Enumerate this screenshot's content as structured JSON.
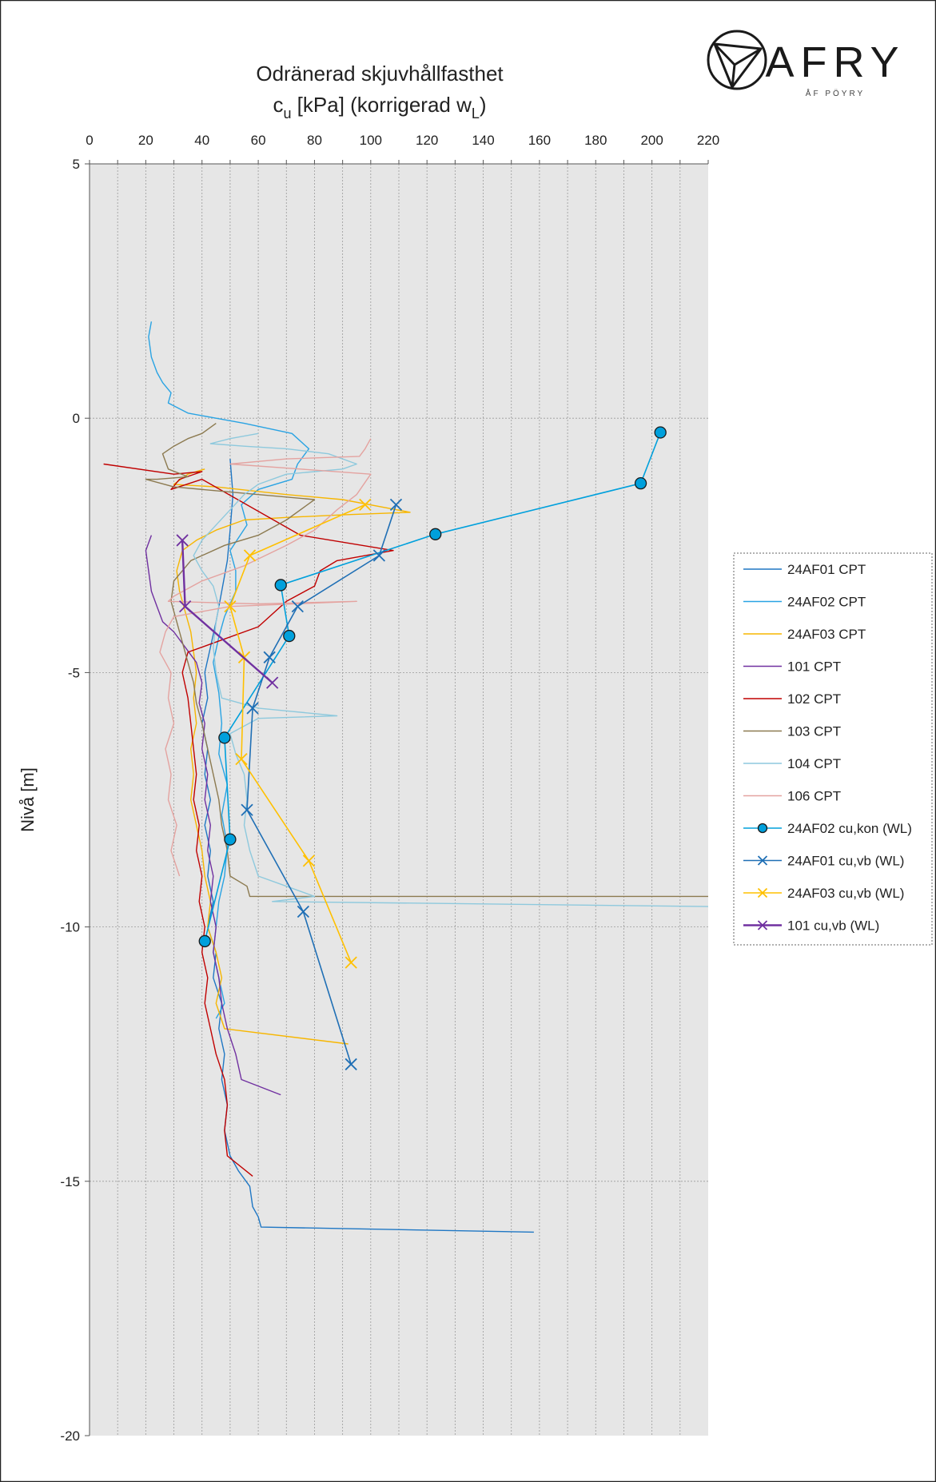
{
  "brand": {
    "name": "AFRY",
    "sub": "ÅF PÖYRY"
  },
  "chart_data": {
    "type": "line",
    "title_line1": "Odränerad skjuvhållfasthet",
    "title_line2_base": "c",
    "title_line2_sub": "u",
    "title_line2_mid": " [kPa] (korrigerad w",
    "title_line2_sub2": "L",
    "title_line2_end": ")",
    "xlabel": "",
    "ylabel": "Nivå [m]",
    "xlim": [
      0,
      220
    ],
    "ylim": [
      -20,
      5
    ],
    "x_ticks": [
      0,
      20,
      40,
      60,
      80,
      100,
      120,
      140,
      160,
      180,
      200,
      220
    ],
    "x_tick_labels": [
      "0",
      "20",
      "40",
      "60",
      "80",
      "100",
      "120",
      "140",
      "160",
      "180",
      "200",
      "220"
    ],
    "y_ticks": [
      5,
      0,
      -5,
      -10,
      -15,
      -20
    ],
    "y_tick_labels": [
      "5",
      "0",
      "-5",
      "-10",
      "-15",
      "-20"
    ],
    "grid": "vertical every 10 kPa, horizontal dotted at labeled levels",
    "legend_position": "right",
    "series": [
      {
        "name": "24AF01 CPT",
        "color": "#1f77c4",
        "marker": "none",
        "width": 1.4,
        "points": [
          [
            50,
            -0.8
          ],
          [
            51,
            -1.5
          ],
          [
            50,
            -2.2
          ],
          [
            49,
            -2.8
          ],
          [
            47,
            -3.4
          ],
          [
            45,
            -4.0
          ],
          [
            43,
            -4.5
          ],
          [
            41,
            -5.0
          ],
          [
            42,
            -5.5
          ],
          [
            40,
            -6.0
          ],
          [
            42,
            -6.5
          ],
          [
            41,
            -7.0
          ],
          [
            43,
            -7.5
          ],
          [
            41,
            -8.0
          ],
          [
            43,
            -8.5
          ],
          [
            42,
            -9.0
          ],
          [
            44,
            -9.5
          ],
          [
            42,
            -10.0
          ],
          [
            45,
            -10.5
          ],
          [
            44,
            -11.0
          ],
          [
            47,
            -11.5
          ],
          [
            46,
            -12.0
          ],
          [
            48,
            -12.5
          ],
          [
            47,
            -13.0
          ],
          [
            49,
            -13.5
          ],
          [
            48,
            -14.0
          ],
          [
            50,
            -14.5
          ],
          [
            53,
            -14.8
          ],
          [
            57,
            -15.1
          ],
          [
            58,
            -15.5
          ],
          [
            60,
            -15.7
          ],
          [
            61,
            -15.9
          ],
          [
            158,
            -16.0
          ]
        ]
      },
      {
        "name": "24AF02 CPT",
        "color": "#29a3e3",
        "marker": "none",
        "width": 1.4,
        "points": [
          [
            22,
            1.9
          ],
          [
            21,
            1.6
          ],
          [
            22,
            1.2
          ],
          [
            24,
            0.9
          ],
          [
            26,
            0.7
          ],
          [
            29,
            0.5
          ],
          [
            28,
            0.3
          ],
          [
            35,
            0.1
          ],
          [
            45,
            0.0
          ],
          [
            55,
            -0.1
          ],
          [
            72,
            -0.3
          ],
          [
            78,
            -0.6
          ],
          [
            74,
            -0.9
          ],
          [
            72,
            -1.2
          ],
          [
            60,
            -1.4
          ],
          [
            54,
            -1.7
          ],
          [
            56,
            -2.1
          ],
          [
            50,
            -2.6
          ],
          [
            52,
            -3.0
          ],
          [
            52,
            -3.4
          ],
          [
            48,
            -3.9
          ],
          [
            46,
            -4.3
          ],
          [
            44,
            -4.8
          ],
          [
            46,
            -5.4
          ],
          [
            47,
            -6.0
          ],
          [
            46,
            -6.6
          ],
          [
            49,
            -7.2
          ],
          [
            47,
            -7.8
          ],
          [
            49,
            -8.4
          ],
          [
            48,
            -9.0
          ],
          [
            46,
            -9.5
          ],
          [
            45,
            -10.0
          ],
          [
            44,
            -10.5
          ],
          [
            46,
            -11.0
          ],
          [
            48,
            -11.5
          ],
          [
            45,
            -11.8
          ]
        ]
      },
      {
        "name": "24AF03 CPT",
        "color": "#f7b600",
        "marker": "none",
        "width": 1.4,
        "points": [
          [
            41,
            -1.0
          ],
          [
            35,
            -1.1
          ],
          [
            30,
            -1.3
          ],
          [
            45,
            -1.35
          ],
          [
            70,
            -1.5
          ],
          [
            90,
            -1.6
          ],
          [
            114,
            -1.85
          ],
          [
            90,
            -1.9
          ],
          [
            70,
            -1.95
          ],
          [
            55,
            -2.0
          ],
          [
            45,
            -2.2
          ],
          [
            38,
            -2.4
          ],
          [
            33,
            -2.6
          ],
          [
            31,
            -3.0
          ],
          [
            32,
            -3.4
          ],
          [
            34,
            -3.8
          ],
          [
            36,
            -4.2
          ],
          [
            37,
            -4.6
          ],
          [
            38,
            -5.0
          ],
          [
            37,
            -5.5
          ],
          [
            38,
            -6.0
          ],
          [
            36,
            -6.5
          ],
          [
            37,
            -7.0
          ],
          [
            36,
            -7.5
          ],
          [
            38,
            -8.0
          ],
          [
            40,
            -8.5
          ],
          [
            41,
            -9.0
          ],
          [
            43,
            -9.5
          ],
          [
            42,
            -10.0
          ],
          [
            45,
            -10.5
          ],
          [
            47,
            -11.0
          ],
          [
            45,
            -11.5
          ],
          [
            48,
            -12.0
          ],
          [
            92,
            -12.3
          ]
        ]
      },
      {
        "name": "101 CPT",
        "color": "#7030a0",
        "marker": "none",
        "width": 1.4,
        "points": [
          [
            22,
            -2.3
          ],
          [
            20,
            -2.6
          ],
          [
            21,
            -3.0
          ],
          [
            22,
            -3.4
          ],
          [
            24,
            -3.7
          ],
          [
            26,
            -4.0
          ],
          [
            30,
            -4.2
          ],
          [
            34,
            -4.5
          ],
          [
            38,
            -4.8
          ],
          [
            40,
            -5.2
          ],
          [
            39,
            -5.6
          ],
          [
            41,
            -6.0
          ],
          [
            40,
            -6.5
          ],
          [
            42,
            -7.0
          ],
          [
            41,
            -7.5
          ],
          [
            43,
            -8.0
          ],
          [
            42,
            -8.5
          ],
          [
            44,
            -9.0
          ],
          [
            43,
            -9.5
          ],
          [
            45,
            -10.0
          ],
          [
            44,
            -10.5
          ],
          [
            46,
            -11.0
          ],
          [
            47,
            -11.5
          ],
          [
            49,
            -12.0
          ],
          [
            52,
            -12.5
          ],
          [
            54,
            -13.0
          ],
          [
            68,
            -13.3
          ]
        ]
      },
      {
        "name": "102 CPT",
        "color": "#c00000",
        "marker": "none",
        "width": 1.4,
        "points": [
          [
            5,
            -0.9
          ],
          [
            30,
            -1.1
          ],
          [
            40,
            -1.05
          ],
          [
            32,
            -1.2
          ],
          [
            29,
            -1.4
          ],
          [
            40,
            -1.2
          ],
          [
            75,
            -2.3
          ],
          [
            108,
            -2.6
          ],
          [
            88,
            -2.8
          ],
          [
            82,
            -3.0
          ],
          [
            80,
            -3.3
          ],
          [
            70,
            -3.6
          ],
          [
            60,
            -4.1
          ],
          [
            45,
            -4.4
          ],
          [
            35,
            -4.6
          ],
          [
            33,
            -5.0
          ],
          [
            35,
            -5.5
          ],
          [
            36,
            -6.0
          ],
          [
            37,
            -6.5
          ],
          [
            38,
            -7.0
          ],
          [
            37,
            -7.5
          ],
          [
            39,
            -8.0
          ],
          [
            38,
            -8.5
          ],
          [
            40,
            -9.0
          ],
          [
            39,
            -9.5
          ],
          [
            41,
            -10.0
          ],
          [
            40,
            -10.5
          ],
          [
            42,
            -11.0
          ],
          [
            41,
            -11.5
          ],
          [
            43,
            -12.0
          ],
          [
            45,
            -12.5
          ],
          [
            48,
            -13.0
          ],
          [
            49,
            -13.5
          ],
          [
            48,
            -14.0
          ],
          [
            49,
            -14.5
          ],
          [
            58,
            -14.9
          ]
        ]
      },
      {
        "name": "103 CPT",
        "color": "#8c7a50",
        "marker": "none",
        "width": 1.4,
        "points": [
          [
            45,
            -0.1
          ],
          [
            40,
            -0.3
          ],
          [
            35,
            -0.4
          ],
          [
            30,
            -0.55
          ],
          [
            26,
            -0.7
          ],
          [
            28,
            -1.0
          ],
          [
            35,
            -1.15
          ],
          [
            24,
            -1.2
          ],
          [
            20,
            -1.2
          ],
          [
            30,
            -1.35
          ],
          [
            60,
            -1.5
          ],
          [
            80,
            -1.6
          ],
          [
            70,
            -2.0
          ],
          [
            60,
            -2.3
          ],
          [
            48,
            -2.5
          ],
          [
            36,
            -2.8
          ],
          [
            30,
            -3.2
          ],
          [
            29,
            -3.6
          ],
          [
            31,
            -4.0
          ],
          [
            33,
            -4.4
          ],
          [
            35,
            -4.8
          ],
          [
            37,
            -5.2
          ],
          [
            38,
            -5.6
          ],
          [
            40,
            -6.0
          ],
          [
            42,
            -6.5
          ],
          [
            44,
            -7.0
          ],
          [
            46,
            -7.5
          ],
          [
            47,
            -8.0
          ],
          [
            49,
            -8.5
          ],
          [
            50,
            -9.0
          ],
          [
            56,
            -9.2
          ],
          [
            57,
            -9.4
          ],
          [
            230,
            -9.4
          ]
        ]
      },
      {
        "name": "104 CPT",
        "color": "#8ec9dd",
        "marker": "none",
        "width": 1.4,
        "points": [
          [
            60,
            -0.3
          ],
          [
            50,
            -0.4
          ],
          [
            43,
            -0.5
          ],
          [
            55,
            -0.55
          ],
          [
            70,
            -0.6
          ],
          [
            85,
            -0.7
          ],
          [
            95,
            -0.9
          ],
          [
            90,
            -1.0
          ],
          [
            80,
            -1.05
          ],
          [
            70,
            -1.1
          ],
          [
            60,
            -1.3
          ],
          [
            55,
            -1.5
          ],
          [
            50,
            -1.8
          ],
          [
            45,
            -2.1
          ],
          [
            40,
            -2.4
          ],
          [
            37,
            -2.7
          ],
          [
            40,
            -3.0
          ],
          [
            44,
            -3.3
          ],
          [
            46,
            -3.7
          ],
          [
            45,
            -4.0
          ],
          [
            44,
            -4.5
          ],
          [
            45,
            -5.0
          ],
          [
            47,
            -5.5
          ],
          [
            60,
            -5.7
          ],
          [
            88,
            -5.85
          ],
          [
            60,
            -5.9
          ],
          [
            50,
            -6.2
          ],
          [
            52,
            -6.6
          ],
          [
            55,
            -7.0
          ],
          [
            56,
            -7.5
          ],
          [
            55,
            -8.0
          ],
          [
            57,
            -8.5
          ],
          [
            60,
            -9.0
          ],
          [
            70,
            -9.2
          ],
          [
            80,
            -9.4
          ],
          [
            65,
            -9.5
          ],
          [
            230,
            -9.6
          ]
        ]
      },
      {
        "name": "106 CPT",
        "color": "#e4a3a0",
        "marker": "none",
        "width": 1.4,
        "points": [
          [
            100,
            -0.4
          ],
          [
            98,
            -0.6
          ],
          [
            96,
            -0.75
          ],
          [
            70,
            -0.8
          ],
          [
            50,
            -0.9
          ],
          [
            75,
            -1.0
          ],
          [
            100,
            -1.1
          ],
          [
            95,
            -1.5
          ],
          [
            88,
            -1.8
          ],
          [
            80,
            -2.2
          ],
          [
            70,
            -2.5
          ],
          [
            55,
            -2.9
          ],
          [
            40,
            -3.2
          ],
          [
            30,
            -3.5
          ],
          [
            28,
            -3.6
          ],
          [
            60,
            -3.65
          ],
          [
            95,
            -3.6
          ],
          [
            50,
            -3.7
          ],
          [
            30,
            -3.9
          ],
          [
            27,
            -4.2
          ],
          [
            25,
            -4.6
          ],
          [
            29,
            -5.0
          ],
          [
            28,
            -5.5
          ],
          [
            30,
            -6.0
          ],
          [
            27,
            -6.5
          ],
          [
            29,
            -7.0
          ],
          [
            28,
            -7.5
          ],
          [
            31,
            -8.0
          ],
          [
            29,
            -8.5
          ],
          [
            32,
            -9.0
          ]
        ]
      },
      {
        "name": "24AF02 cu,kon (WL)",
        "color": "#00a0dc",
        "marker": "circle",
        "width": 1.6,
        "points": [
          [
            203,
            -0.28
          ],
          [
            196,
            -1.28
          ],
          [
            123,
            -2.28
          ],
          [
            68,
            -3.28
          ],
          [
            71,
            -4.28
          ],
          [
            48,
            -6.28
          ],
          [
            50,
            -8.28
          ],
          [
            41,
            -10.28
          ]
        ]
      },
      {
        "name": "24AF01 cu,vb (WL)",
        "color": "#1f6fb5",
        "marker": "x",
        "width": 1.6,
        "points": [
          [
            109,
            -1.7
          ],
          [
            103,
            -2.7
          ],
          [
            74,
            -3.7
          ],
          [
            64,
            -4.7
          ],
          [
            58,
            -5.7
          ],
          [
            56,
            -7.7
          ],
          [
            76,
            -9.7
          ],
          [
            93,
            -12.7
          ]
        ]
      },
      {
        "name": "24AF03 cu,vb (WL)",
        "color": "#ffc000",
        "marker": "x",
        "width": 1.6,
        "points": [
          [
            98,
            -1.7
          ],
          [
            57,
            -2.7
          ],
          [
            50,
            -3.7
          ],
          [
            55,
            -4.7
          ],
          [
            54,
            -6.7
          ],
          [
            78,
            -8.7
          ],
          [
            93,
            -10.7
          ]
        ]
      },
      {
        "name": "101 cu,vb (WL)",
        "color": "#7030a0",
        "marker": "x",
        "width": 2.4,
        "points": [
          [
            33,
            -2.4
          ],
          [
            34,
            -3.7
          ],
          [
            65,
            -5.2
          ]
        ]
      }
    ]
  }
}
